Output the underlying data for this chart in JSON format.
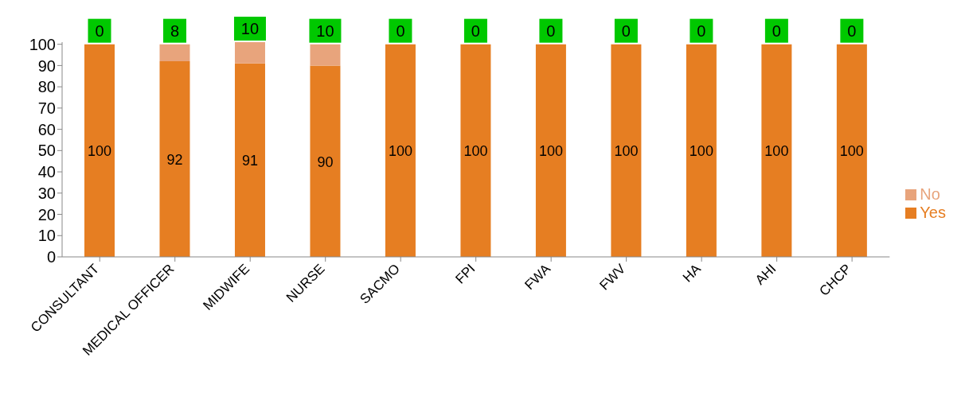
{
  "chart_data": {
    "type": "bar",
    "stacked": true,
    "categories": [
      "CONSULTANT",
      "MEDICAL OFFICER",
      "MIDWIFE",
      "NURSE",
      "SACMO",
      "FPI",
      "FWA",
      "FWV",
      "HA",
      "AHI",
      "CHCP"
    ],
    "series": [
      {
        "name": "Yes",
        "color": "#e67e22",
        "values": [
          100,
          92,
          91,
          90,
          100,
          100,
          100,
          100,
          100,
          100,
          100
        ]
      },
      {
        "name": "No",
        "color": "#e8a47c",
        "values": [
          0,
          8,
          10,
          10,
          0,
          0,
          0,
          0,
          0,
          0,
          0
        ]
      }
    ],
    "ylim": [
      0,
      101
    ],
    "yticks": [
      0,
      10,
      20,
      30,
      40,
      50,
      60,
      70,
      80,
      90,
      100
    ],
    "grid": false,
    "legend": "right",
    "data_labels": true
  }
}
